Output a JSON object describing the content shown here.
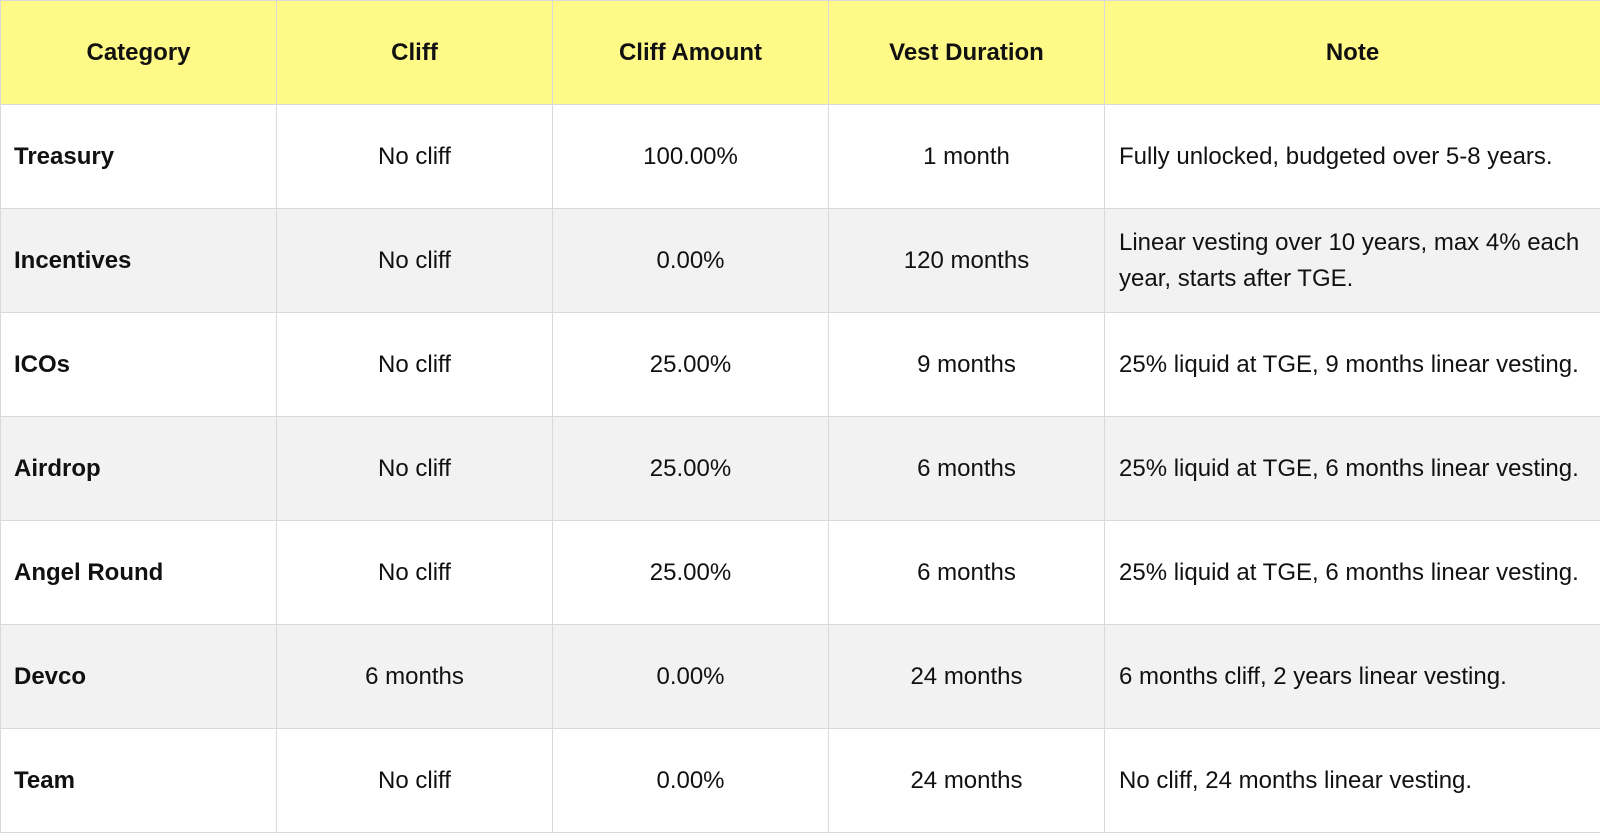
{
  "table": {
    "header": [
      "Category",
      "Cliff",
      "Cliff Amount",
      "Vest Duration",
      "Note"
    ],
    "rows": [
      [
        "Treasury",
        "No cliff",
        "100.00%",
        "1 month",
        "Fully unlocked, budgeted over 5-8 years."
      ],
      [
        "Incentives",
        "No cliff",
        "0.00%",
        "120 months",
        "Linear vesting over 10 years, max 4% each year, starts after TGE."
      ],
      [
        "ICOs",
        "No cliff",
        "25.00%",
        "9 months",
        "25% liquid at TGE, 9 months linear vesting."
      ],
      [
        "Airdrop",
        "No cliff",
        "25.00%",
        "6 months",
        "25% liquid at TGE, 6 months linear vesting."
      ],
      [
        "Angel Round",
        "No cliff",
        "25.00%",
        "6 months",
        "25% liquid at TGE, 6 months linear vesting."
      ],
      [
        "Devco",
        "6 months",
        "0.00%",
        "24 months",
        "6 months cliff, 2 years linear vesting."
      ],
      [
        "Team",
        "No cliff",
        "0.00%",
        "24 months",
        "No cliff, 24 months linear vesting."
      ]
    ]
  }
}
